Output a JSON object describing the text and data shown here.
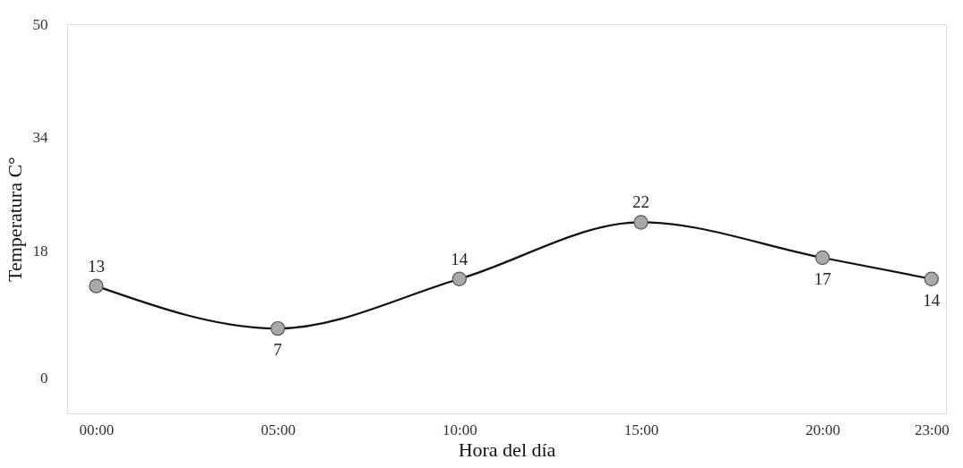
{
  "chart_data": {
    "type": "line",
    "xlabel": "Hora del día",
    "ylabel": "Temperatura C°",
    "x": [
      0,
      5,
      10,
      15,
      20,
      23
    ],
    "series": [
      {
        "color": "#111111",
        "values": [
          13,
          7,
          14,
          22,
          17,
          14
        ]
      }
    ],
    "xlim": [
      -0.8,
      23.4
    ],
    "ylim": [
      -5,
      50
    ],
    "xticks": [
      {
        "value": 0,
        "label": "00:00"
      },
      {
        "value": 5,
        "label": "05:00"
      },
      {
        "value": 10,
        "label": "10:00"
      },
      {
        "value": 15,
        "label": "15:00"
      },
      {
        "value": 20,
        "label": "20:00"
      },
      {
        "value": 23,
        "label": "23:00"
      }
    ],
    "yticks": [
      0,
      18,
      34,
      50
    ],
    "data_labels": true,
    "marker": "circle",
    "line_style": "solid",
    "grid": false
  }
}
